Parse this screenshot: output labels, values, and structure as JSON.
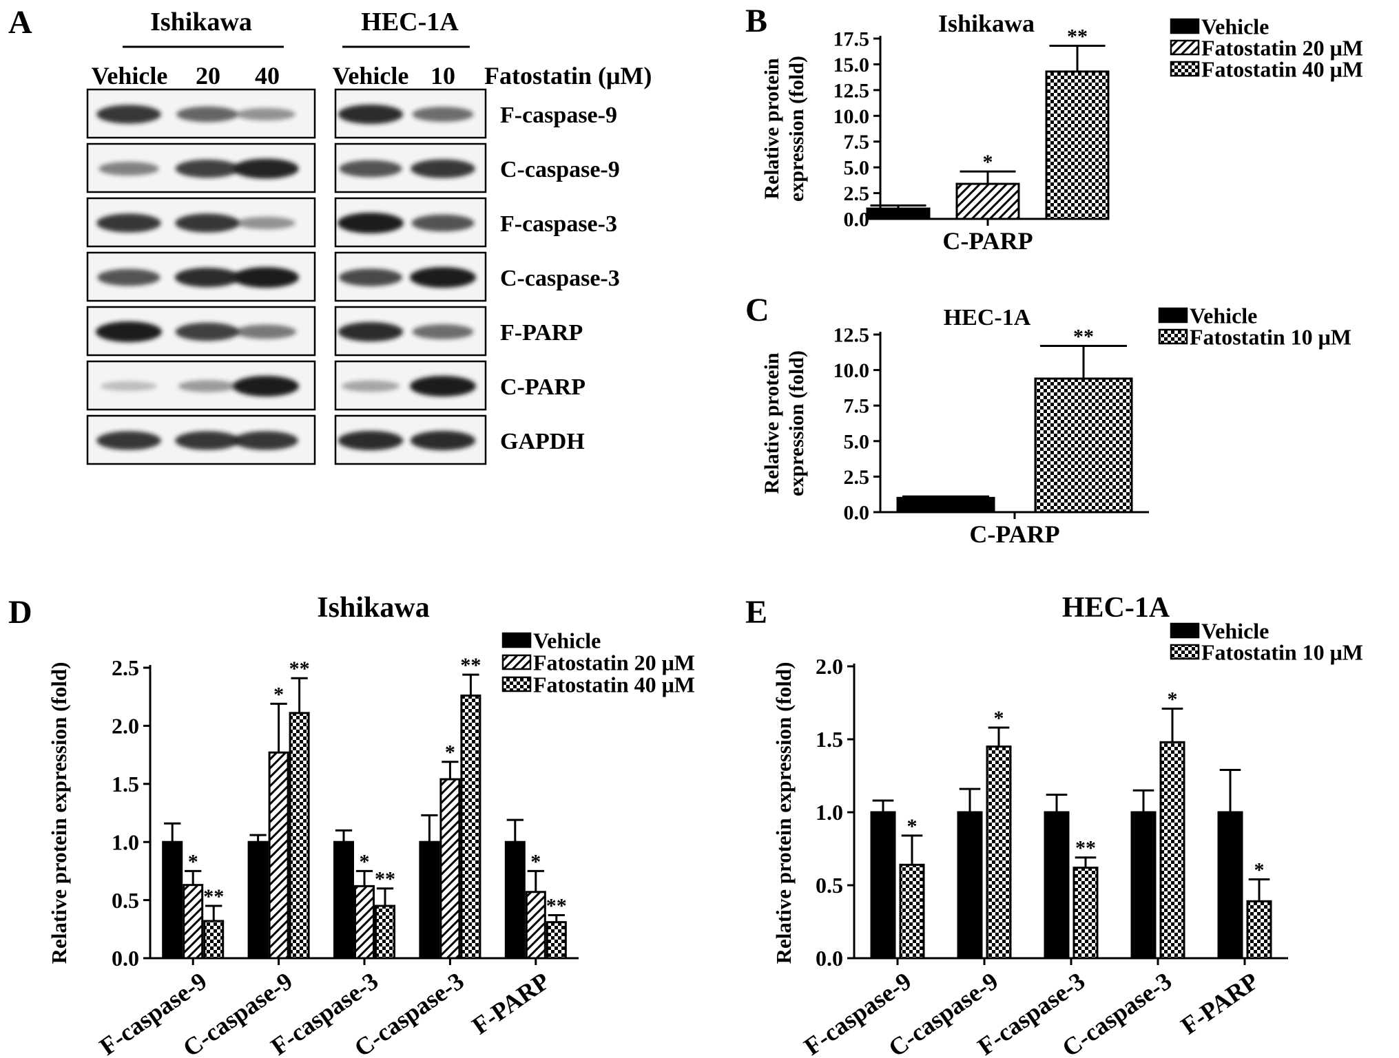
{
  "colors": {
    "ink": "#000000",
    "band": "#1a1a1a",
    "paper": "#ffffff",
    "blot_bg": "#f4f4f4"
  },
  "panel_a": {
    "letter": "A",
    "cell_lines": [
      {
        "name": "Ishikawa",
        "lanes": [
          "Vehicle",
          "20",
          "40"
        ]
      },
      {
        "name": "HEC-1A",
        "lanes": [
          "Vehicle",
          "10"
        ]
      }
    ],
    "treatment_label": "Fatostatin (μM)",
    "proteins": [
      "F-caspase-9",
      "C-caspase-9",
      "F-caspase-3",
      "C-caspase-3",
      "F-PARP",
      "C-PARP",
      "GAPDH"
    ],
    "band_intensity": {
      "Ishikawa": [
        [
          0.85,
          0.6,
          0.35
        ],
        [
          0.45,
          0.8,
          0.95
        ],
        [
          0.85,
          0.85,
          0.35
        ],
        [
          0.7,
          0.9,
          1.0
        ],
        [
          1.0,
          0.8,
          0.5
        ],
        [
          0.12,
          0.3,
          1.0
        ],
        [
          0.85,
          0.85,
          0.85
        ]
      ],
      "HEC-1A": [
        [
          0.9,
          0.55
        ],
        [
          0.7,
          0.85
        ],
        [
          1.0,
          0.7
        ],
        [
          0.75,
          1.0
        ],
        [
          0.9,
          0.55
        ],
        [
          0.25,
          1.0
        ],
        [
          0.9,
          0.9
        ]
      ]
    }
  },
  "chart_data": [
    {
      "panel": "B",
      "type": "bar",
      "title": "Ishikawa",
      "xlabel": "",
      "ylabel": "Relative protein expression (fold)",
      "ylim": [
        0,
        17.5
      ],
      "yticks": [
        "0.0",
        "2.5",
        "5.0",
        "7.5",
        "10.0",
        "12.5",
        "15.0",
        "17.5"
      ],
      "categories": [
        "C-PARP"
      ],
      "series": [
        {
          "name": "Vehicle",
          "pattern": "solid",
          "values": [
            1.0
          ],
          "errors": [
            0.3
          ],
          "sig": [
            ""
          ]
        },
        {
          "name": "Fatostatin 20 μM",
          "pattern": "hatch",
          "values": [
            3.4
          ],
          "errors": [
            1.2
          ],
          "sig": [
            "*"
          ]
        },
        {
          "name": "Fatostatin 40 μM",
          "pattern": "checker",
          "values": [
            14.3
          ],
          "errors": [
            2.5
          ],
          "sig": [
            "**"
          ]
        }
      ],
      "legend": "right"
    },
    {
      "panel": "C",
      "type": "bar",
      "title": "HEC-1A",
      "xlabel": "",
      "ylabel": "Relative protein expression (fold)",
      "ylim": [
        0,
        12.5
      ],
      "yticks": [
        "0.0",
        "2.5",
        "5.0",
        "7.5",
        "10.0",
        "12.5"
      ],
      "categories": [
        "C-PARP"
      ],
      "series": [
        {
          "name": "Vehicle",
          "pattern": "solid",
          "values": [
            1.0
          ],
          "errors": [
            0.1
          ],
          "sig": [
            ""
          ]
        },
        {
          "name": "Fatostatin 10 μM",
          "pattern": "checker",
          "values": [
            9.4
          ],
          "errors": [
            2.3
          ],
          "sig": [
            "**"
          ]
        }
      ],
      "legend": "right"
    },
    {
      "panel": "D",
      "type": "bar",
      "title": "Ishikawa",
      "xlabel": "",
      "ylabel": "Relative protein expression (fold)",
      "ylim": [
        0,
        2.5
      ],
      "yticks": [
        "0.0",
        "0.5",
        "1.0",
        "1.5",
        "2.0",
        "2.5"
      ],
      "categories": [
        "F-caspase-9",
        "C-caspase-9",
        "F-caspase-3",
        "C-caspase-3",
        "F-PARP"
      ],
      "series": [
        {
          "name": "Vehicle",
          "pattern": "solid",
          "values": [
            1.0,
            1.0,
            1.0,
            1.0,
            1.0
          ],
          "errors": [
            0.16,
            0.06,
            0.1,
            0.23,
            0.19
          ],
          "sig": [
            "",
            "",
            "",
            "",
            ""
          ]
        },
        {
          "name": "Fatostatin 20 μM",
          "pattern": "hatch",
          "values": [
            0.63,
            1.77,
            0.62,
            1.54,
            0.57
          ],
          "errors": [
            0.12,
            0.42,
            0.13,
            0.15,
            0.18
          ],
          "sig": [
            "*",
            "*",
            "*",
            "*",
            "*"
          ]
        },
        {
          "name": "Fatostatin 40 μM",
          "pattern": "checker",
          "values": [
            0.32,
            2.11,
            0.45,
            2.26,
            0.31
          ],
          "errors": [
            0.13,
            0.3,
            0.15,
            0.18,
            0.06
          ],
          "sig": [
            "**",
            "**",
            "**",
            "**",
            "**"
          ]
        }
      ],
      "legend": "top-right"
    },
    {
      "panel": "E",
      "type": "bar",
      "title": "HEC-1A",
      "xlabel": "",
      "ylabel": "Relative protein expression (fold)",
      "ylim": [
        0,
        2.0
      ],
      "yticks": [
        "0.0",
        "0.5",
        "1.0",
        "1.5",
        "2.0"
      ],
      "categories": [
        "F-caspase-9",
        "C-caspase-9",
        "F-caspase-3",
        "C-caspase-3",
        "F-PARP"
      ],
      "series": [
        {
          "name": "Vehicle",
          "pattern": "solid",
          "values": [
            1.0,
            1.0,
            1.0,
            1.0,
            1.0
          ],
          "errors": [
            0.08,
            0.16,
            0.12,
            0.15,
            0.29
          ],
          "sig": [
            "",
            "",
            "",
            "",
            ""
          ]
        },
        {
          "name": "Fatostatin 10 μM",
          "pattern": "checker",
          "values": [
            0.64,
            1.45,
            0.62,
            1.48,
            0.39
          ],
          "errors": [
            0.2,
            0.13,
            0.07,
            0.23,
            0.15
          ],
          "sig": [
            "*",
            "*",
            "**",
            "*",
            "*"
          ]
        }
      ],
      "legend": "top-right"
    }
  ]
}
